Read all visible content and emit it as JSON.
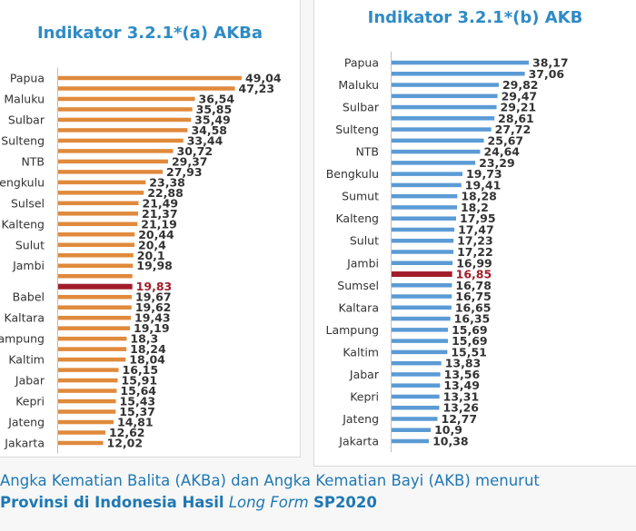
{
  "chart_data": [
    {
      "type": "bar",
      "orientation": "horizontal",
      "title": "Indikator 3.2.1*(a) AKBa",
      "bar_color": "#e08a3c",
      "highlight_color": "#a11d2b",
      "highlight_index": 20,
      "categories": [
        "Papua",
        "",
        "Maluku",
        "",
        "Sulbar",
        "",
        "Sulteng",
        "",
        "NTB",
        "",
        "engkulu",
        "",
        "Sulsel",
        "",
        "Kalteng",
        "",
        "Sulut",
        "",
        "Jambi",
        "",
        "",
        "Babel",
        "",
        "Kaltara",
        "",
        "ampung",
        "",
        "Kaltim",
        "",
        "Jabar",
        "",
        "Kepri",
        "",
        "Jateng",
        "",
        "Jakarta"
      ],
      "values": [
        49.04,
        47.23,
        36.54,
        35.85,
        35.49,
        34.58,
        33.44,
        30.72,
        29.37,
        27.93,
        23.38,
        22.88,
        21.49,
        21.37,
        21.19,
        20.44,
        20.4,
        20.1,
        19.98,
        19.83,
        19.83,
        19.67,
        19.62,
        19.43,
        19.19,
        18.3,
        18.24,
        18.04,
        16.15,
        15.91,
        15.64,
        15.43,
        15.37,
        14.81,
        12.62,
        12.02
      ],
      "value_labels": [
        "49,04",
        "47,23",
        "36,54",
        "35,85",
        "35,49",
        "34,58",
        "33,44",
        "30,72",
        "29,37",
        "27,93",
        "23,38",
        "22,88",
        "21,49",
        "21,37",
        "21,19",
        "20,44",
        "20,4",
        "20,1",
        "19,98",
        "",
        "19,83",
        "19,67",
        "19,62",
        "19,43",
        "19,19",
        "18,3",
        "18,24",
        "18,04",
        "16,15",
        "15,91",
        "15,64",
        "15,43",
        "15,37",
        "14,81",
        "12,62",
        "12,02"
      ]
    },
    {
      "type": "bar",
      "orientation": "horizontal",
      "title": "Indikator 3.2.1*(b) AKB",
      "bar_color": "#5b9bd5",
      "highlight_color": "#a11d2b",
      "highlight_index": 19,
      "categories": [
        "Papua",
        "",
        "Maluku",
        "",
        "Sulbar",
        "",
        "Sulteng",
        "",
        "NTB",
        "",
        "Bengkulu",
        "",
        "Sumut",
        "",
        "Kalteng",
        "",
        "Sulut",
        "",
        "Jambi",
        "",
        "Sumsel",
        "",
        "Kaltara",
        "",
        "Lampung",
        "",
        "Kaltim",
        "",
        "Jabar",
        "",
        "Kepri",
        "",
        "Jateng",
        "",
        "Jakarta"
      ],
      "values": [
        38.17,
        37.06,
        29.82,
        29.47,
        29.21,
        28.61,
        27.72,
        25.67,
        24.64,
        23.29,
        19.73,
        19.41,
        18.28,
        18.2,
        17.95,
        17.47,
        17.23,
        17.22,
        16.99,
        16.85,
        16.78,
        16.75,
        16.65,
        16.35,
        15.69,
        15.69,
        15.51,
        13.83,
        13.56,
        13.49,
        13.31,
        13.26,
        12.77,
        10.9,
        10.38
      ],
      "value_labels": [
        "38,17",
        "37,06",
        "29,82",
        "29,47",
        "29,21",
        "28,61",
        "27,72",
        "25,67",
        "24,64",
        "23,29",
        "19,73",
        "19,41",
        "18,28",
        "18,2",
        "17,95",
        "17,47",
        "17,23",
        "17,22",
        "16,99",
        "16,85",
        "16,78",
        "16,75",
        "16,65",
        "16,35",
        "15,69",
        "15,69",
        "15,51",
        "13,83",
        "13,56",
        "13,49",
        "13,31",
        "13,26",
        "12,77",
        "10,9",
        "10,38"
      ]
    }
  ],
  "caption": {
    "line1": "Angka Kematian Balita (AKBa) dan Angka Kematian Bayi (AKB) menurut",
    "line2_prefix": "Provinsi di Indonesia Hasil",
    "line2_italic": "Long Form",
    "line2_suffix": "SP2020"
  }
}
